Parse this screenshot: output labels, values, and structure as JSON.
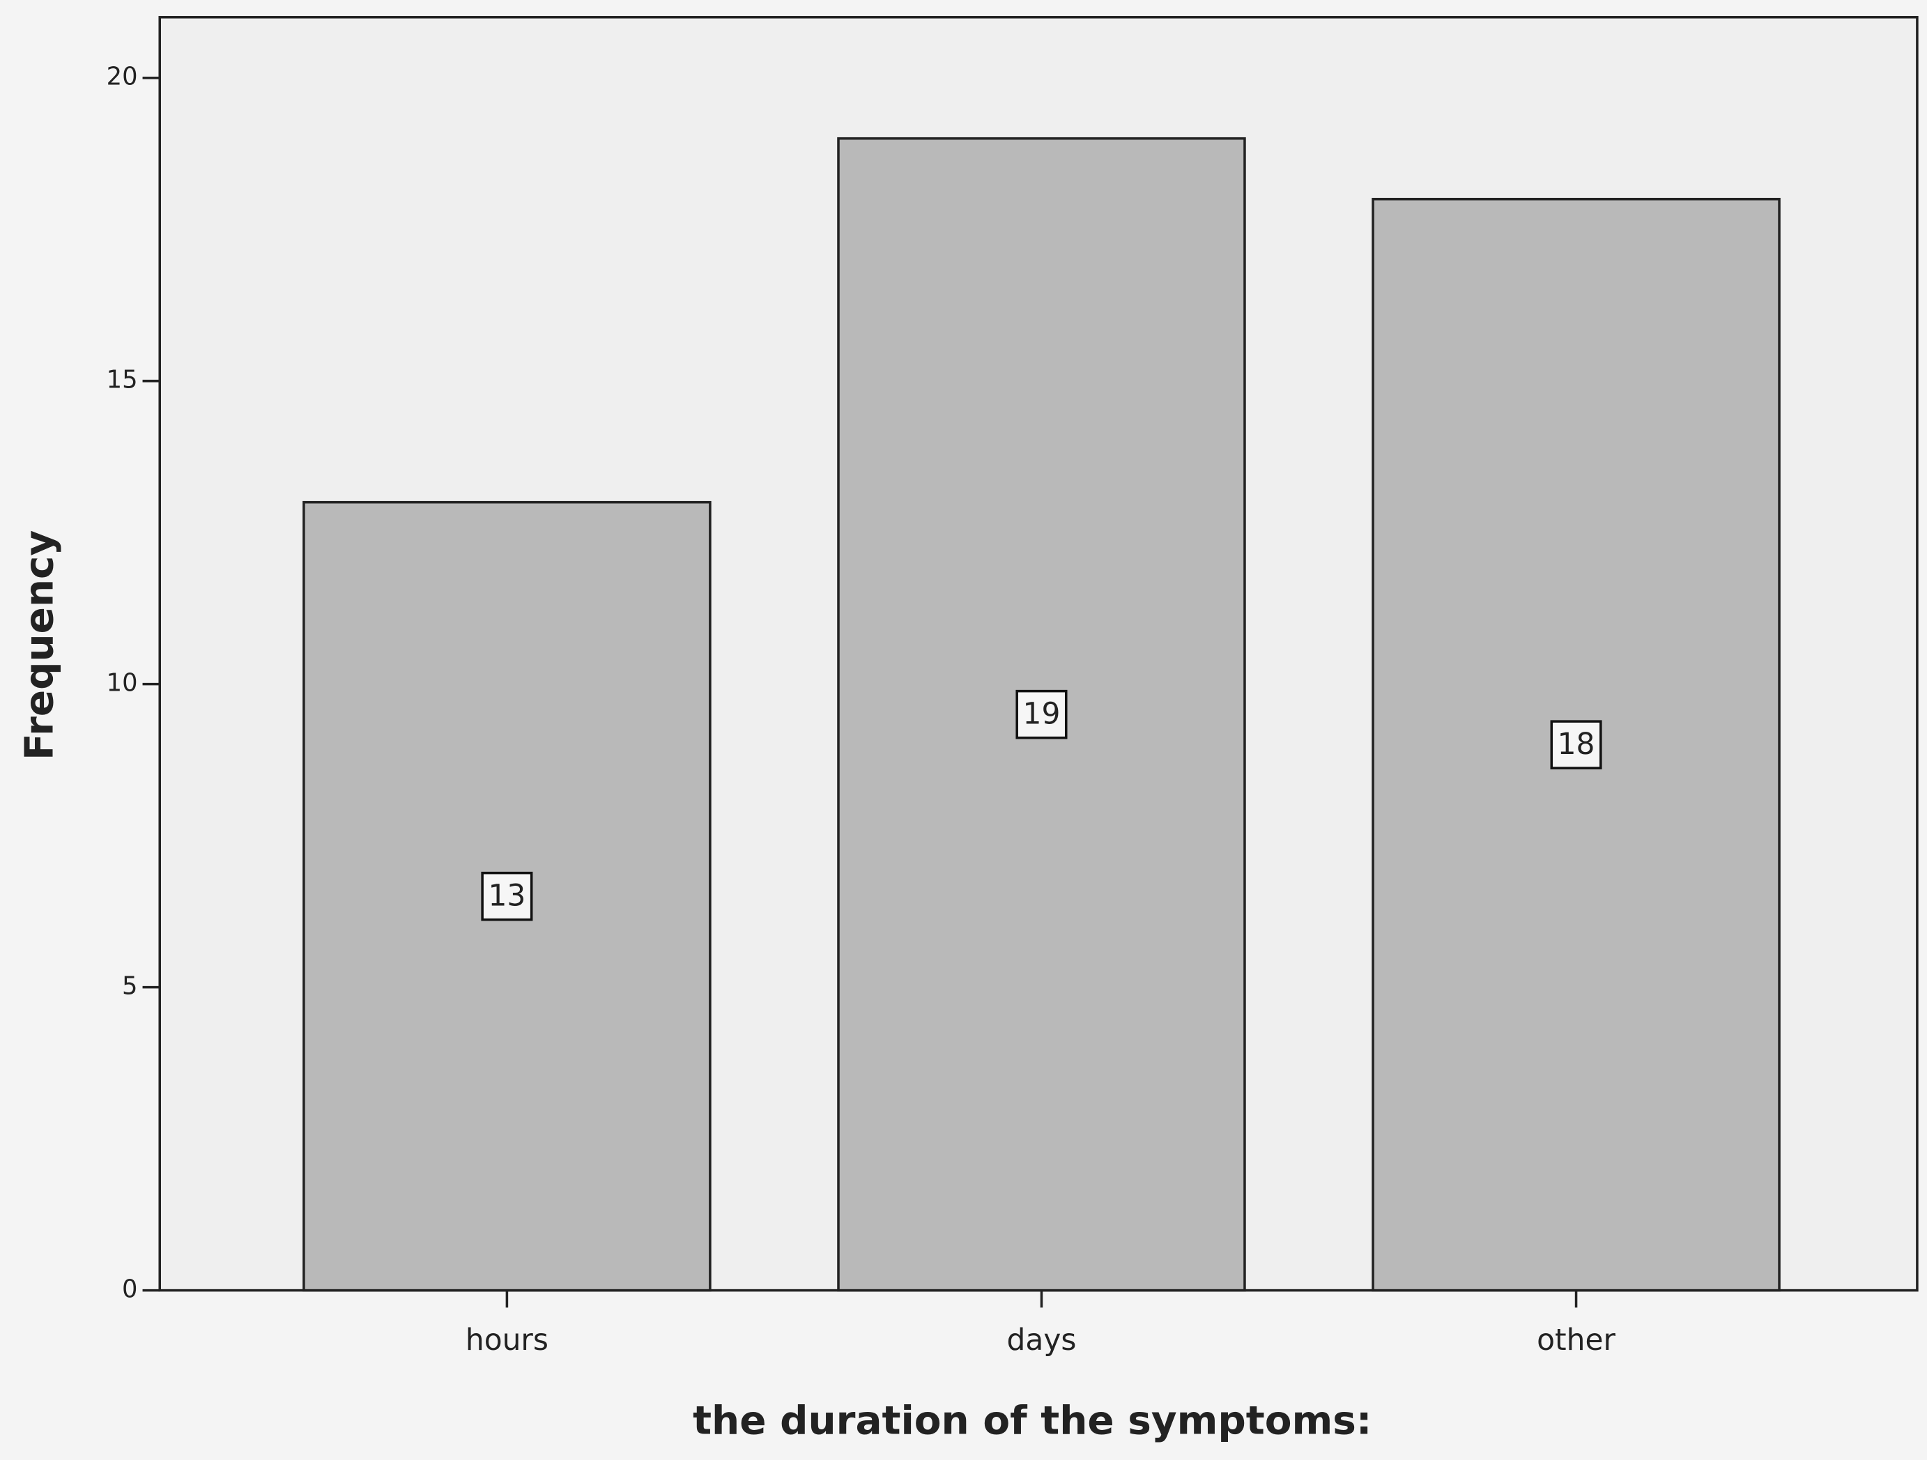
{
  "chart_data": {
    "type": "bar",
    "categories": [
      "hours",
      "days",
      "other"
    ],
    "values": [
      13,
      19,
      18
    ],
    "color": "#b9b9b9",
    "x_label": "the duration of the symptoms:",
    "y_label": "Frequency",
    "ylim": [
      0,
      21
    ],
    "yticks": [
      0,
      5,
      10,
      15,
      20
    ],
    "grid": false
  }
}
